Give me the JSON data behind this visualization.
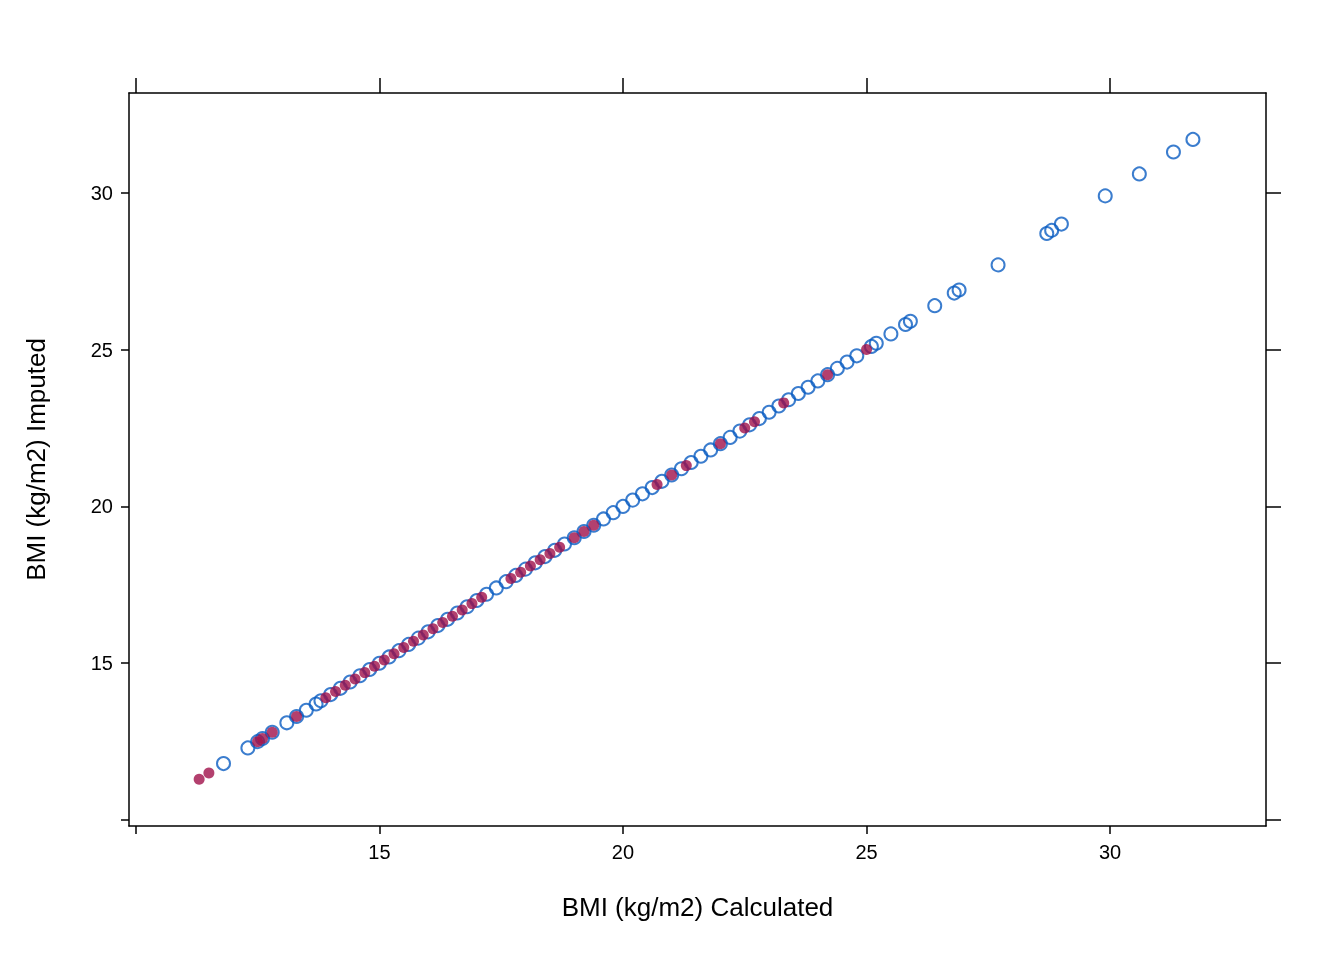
{
  "chart_data": {
    "type": "scatter",
    "xlabel": "BMI (kg/m2) Calculated",
    "ylabel": "BMI (kg/m2) Imputed",
    "xlim": [
      9.86,
      33.2
    ],
    "ylim": [
      9.81,
      33.18
    ],
    "xticks": [
      {
        "value": 10,
        "label": null
      },
      15,
      20,
      25,
      30
    ],
    "yticks": [
      {
        "value": 10,
        "label": null
      },
      15,
      20,
      25,
      30
    ],
    "grid": false,
    "marker": "circle",
    "series": [
      {
        "color": "#0a5cc2",
        "x": [
          11.8,
          12.3,
          12.5,
          12.6,
          12.8,
          13.1,
          13.3,
          13.5,
          13.7,
          13.8,
          14.0,
          14.2,
          14.4,
          14.6,
          14.8,
          15.0,
          15.2,
          15.4,
          15.6,
          15.8,
          16.0,
          16.2,
          16.4,
          16.6,
          16.8,
          17.0,
          17.2,
          17.4,
          17.6,
          17.8,
          18.0,
          18.2,
          18.4,
          18.6,
          18.8,
          19.0,
          19.2,
          19.4,
          19.6,
          19.8,
          20.0,
          20.2,
          20.4,
          20.6,
          20.8,
          21.0,
          21.2,
          21.4,
          21.6,
          21.8,
          22.0,
          22.2,
          22.4,
          22.6,
          22.8,
          23.0,
          23.2,
          23.4,
          23.6,
          23.8,
          24.0,
          24.2,
          24.4,
          24.6,
          24.8,
          25.1,
          25.2,
          25.5,
          25.8,
          25.9,
          26.4,
          26.8,
          26.9,
          27.7,
          28.7,
          28.8,
          29.0,
          29.9,
          30.6,
          31.3,
          31.7
        ],
        "values": [
          11.8,
          12.3,
          12.5,
          12.6,
          12.8,
          13.1,
          13.3,
          13.5,
          13.7,
          13.8,
          14.0,
          14.2,
          14.4,
          14.6,
          14.8,
          15.0,
          15.2,
          15.4,
          15.6,
          15.8,
          16.0,
          16.2,
          16.4,
          16.6,
          16.8,
          17.0,
          17.2,
          17.4,
          17.6,
          17.8,
          18.0,
          18.2,
          18.4,
          18.6,
          18.8,
          19.0,
          19.2,
          19.4,
          19.6,
          19.8,
          20.0,
          20.2,
          20.4,
          20.6,
          20.8,
          21.0,
          21.2,
          21.4,
          21.6,
          21.8,
          22.0,
          22.2,
          22.4,
          22.6,
          22.8,
          23.0,
          23.2,
          23.4,
          23.6,
          23.8,
          24.0,
          24.2,
          24.4,
          24.6,
          24.8,
          25.1,
          25.2,
          25.5,
          25.8,
          25.9,
          26.4,
          26.8,
          26.9,
          27.7,
          28.7,
          28.8,
          29.0,
          29.9,
          30.6,
          31.3,
          31.7
        ]
      },
      {
        "color": "#a0104a",
        "x": [
          11.3,
          11.5,
          12.5,
          12.6,
          12.8,
          13.3,
          13.9,
          14.1,
          14.3,
          14.5,
          14.7,
          14.9,
          15.1,
          15.3,
          15.5,
          15.7,
          15.9,
          16.1,
          16.3,
          16.5,
          16.7,
          16.9,
          17.1,
          17.7,
          17.9,
          18.1,
          18.3,
          18.5,
          18.7,
          19.0,
          19.2,
          19.4,
          20.7,
          21.0,
          21.3,
          22.0,
          22.5,
          22.7,
          23.3,
          24.2,
          25.0
        ],
        "values": [
          11.3,
          11.5,
          12.5,
          12.6,
          12.8,
          13.3,
          13.9,
          14.1,
          14.3,
          14.5,
          14.7,
          14.9,
          15.1,
          15.3,
          15.5,
          15.7,
          15.9,
          16.1,
          16.3,
          16.5,
          16.7,
          16.9,
          17.1,
          17.7,
          17.9,
          18.1,
          18.3,
          18.5,
          18.7,
          19.0,
          19.2,
          19.4,
          20.7,
          21.0,
          21.3,
          22.0,
          22.5,
          22.7,
          23.3,
          24.2,
          25.0
        ]
      }
    ]
  }
}
